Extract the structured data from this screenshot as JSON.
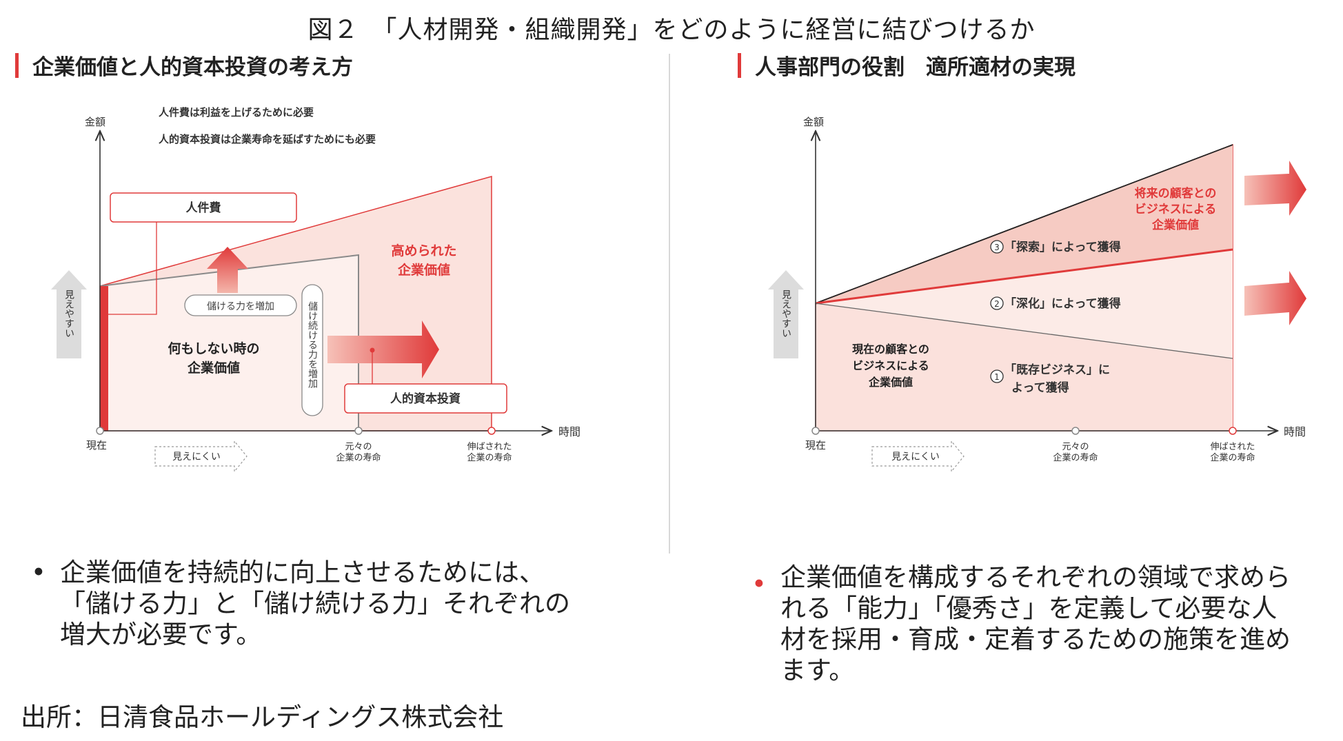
{
  "figure_title": "図２　「人材開発・組織開発」をどのように経営に結びつけるか",
  "left": {
    "heading": "企業価値と人的資本投資の考え方",
    "y_axis_label": "金額",
    "x_axis_label": "時間",
    "note_1": "人件費は利益を上げるために必要",
    "note_2": "人的資本投資は企業寿命を延ばすためにも必要",
    "label_personnel_cost": "人件費",
    "label_earning_power": "儲ける力を増加",
    "label_sustain_power": "儲け続ける力を増加",
    "label_hc_investment": "人的資本投資",
    "label_base_value_line1": "何もしない時の",
    "label_base_value_line2": "企業価値",
    "label_raised_value_line1": "高められた",
    "label_raised_value_line2": "企業価値",
    "label_visible": "見えやすい",
    "label_invisible": "見えにくい",
    "tick_now": "現在",
    "tick_orig_line1": "元々の",
    "tick_orig_line2": "企業の寿命",
    "tick_ext_line1": "伸ばされた",
    "tick_ext_line2": "企業の寿命",
    "bullet": "企業価値を持続的に向上させるためには、「儲ける力」と「儲け続ける力」それぞれの増大が必要です。",
    "bullet_line1": "企業価値を持続的に向上させるためには、",
    "bullet_line2": "「儲ける力」と「儲け続ける力」それぞれの",
    "bullet_line3": "増大が必要です。"
  },
  "right": {
    "heading": "人事部門の役割　適所適材の実現",
    "y_axis_label": "金額",
    "x_axis_label": "時間",
    "future_value_line1": "将来の顧客との",
    "future_value_line2": "ビジネスによる",
    "future_value_line3": "企業価値",
    "current_value_line1": "現在の顧客との",
    "current_value_line2": "ビジネスによる",
    "current_value_line3": "企業価値",
    "item3_num": "3",
    "item3_text": "「探索」によって獲得",
    "item2_num": "2",
    "item2_text": "「深化」によって獲得",
    "item1_num": "1",
    "item1_text_line1": "「既存ビジネス」に",
    "item1_text_line2": "よって獲得",
    "label_visible": "見えやすい",
    "label_invisible": "見えにくい",
    "tick_now": "現在",
    "tick_orig_line1": "元々の",
    "tick_orig_line2": "企業の寿命",
    "tick_ext_line1": "伸ばされた",
    "tick_ext_line2": "企業の寿命",
    "bullet": "企業価値を構成するそれぞれの領域で求められる「能力」「優秀さ」を定義して必要な人材を採用・育成・定着するための施策を進めます。",
    "bullet_line1": "企業価値を構成するそれぞれの領域で求めら",
    "bullet_line2": "れる「能力」「優秀さ」を定義して必要な人",
    "bullet_line3": "材を採用・育成・定着するための施策を進め",
    "bullet_line4": "ます。"
  },
  "source": "出所：日清食品ホールディングス株式会社",
  "colors": {
    "accent_red": "#e03a3a",
    "light_fill": "#fbe4e0",
    "medium_fill": "#f6cbc3",
    "grey_arrow": "#d9d9d9"
  }
}
